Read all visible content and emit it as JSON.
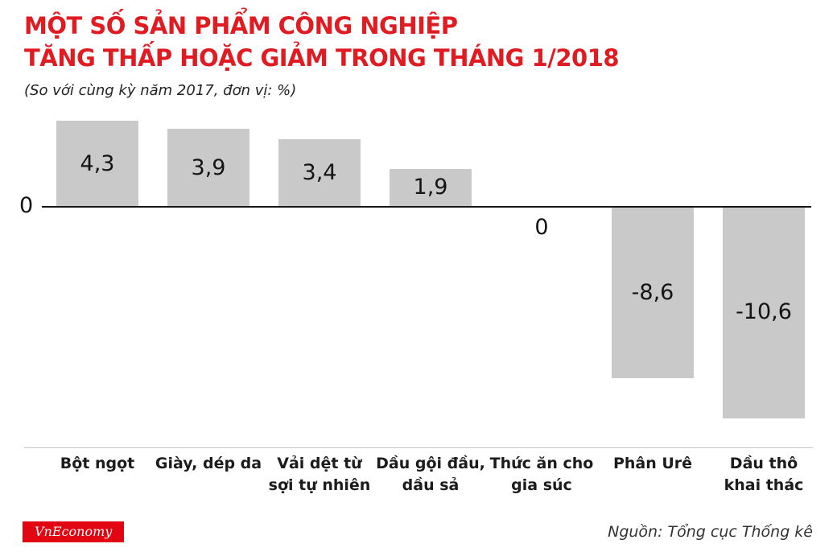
{
  "chart_data": {
    "type": "bar",
    "title_line1": "MỘT SỐ SẢN PHẨM CÔNG NGHIỆP",
    "title_line2": "TĂNG THẤP HOẶC GIẢM TRONG THÁNG 1/2018",
    "subtitle": "(So với cùng kỳ năm 2017, đơn vị: %)",
    "categories": [
      "Bột ngọt",
      "Giày, dép da",
      "Vải dệt từ sợi tự nhiên",
      "Dầu gội đầu, dầu sả",
      "Thức ăn cho gia súc",
      "Phân Urê",
      "Dầu thô khai thác"
    ],
    "categories_display": [
      "Bột ngọt",
      "Giày, dép da",
      "Vải dệt từ\nsợi tự nhiên",
      "Dầu gội đầu,\ndầu sả",
      "Thức ăn cho\ngia súc",
      "Phân Urê",
      "Dầu thô\nkhai thác"
    ],
    "values": [
      4.3,
      3.9,
      3.4,
      1.9,
      0,
      -8.6,
      -10.6
    ],
    "value_labels": [
      "4,3",
      "3,9",
      "3,4",
      "1,9",
      "0",
      "-8,6",
      "-10,6"
    ],
    "baseline_label": "0",
    "unit": "%",
    "ylim": [
      -11,
      5
    ],
    "grid": false,
    "legend": "none",
    "bar_color": "#c9c9c9"
  },
  "footer": {
    "logo_text": "VnEconomy",
    "source": "Nguồn: Tổng cục Thống kê"
  },
  "colors": {
    "accent_red": "#e11b22",
    "logo_red": "#e20613",
    "bar_gray": "#c9c9c9",
    "text_dark": "#141414"
  }
}
